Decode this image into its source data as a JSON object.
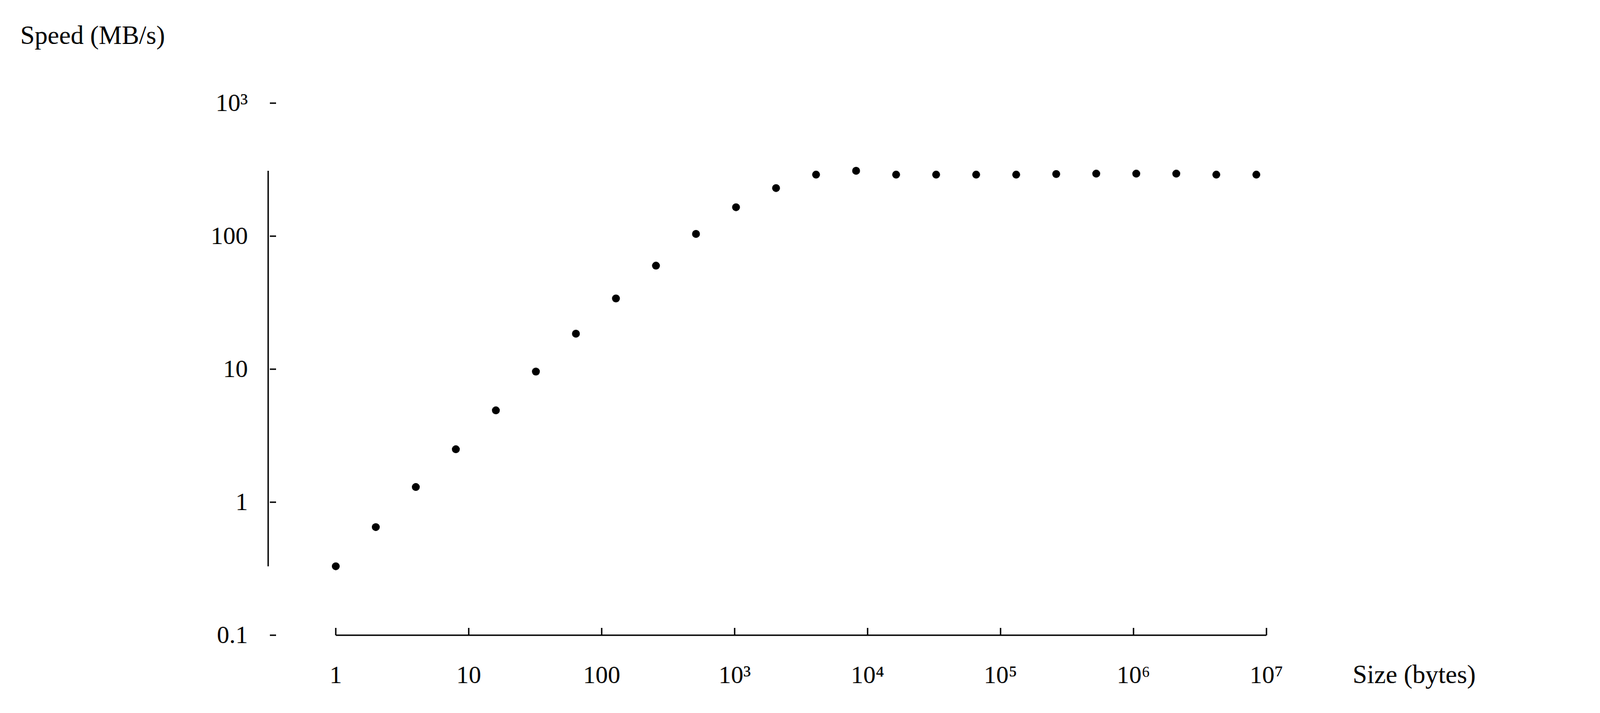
{
  "chart_data": {
    "type": "scatter",
    "x_label": "Size (bytes)",
    "y_label": "Speed (MB/s)",
    "x": [
      1,
      2,
      4,
      8,
      16,
      32,
      64,
      128,
      256,
      512,
      1024,
      2048,
      4096,
      8192,
      16384,
      32768,
      65536,
      131072,
      262144,
      524288,
      1048576,
      2097152,
      4194304,
      8388608
    ],
    "values": [
      0.33,
      0.65,
      1.3,
      2.5,
      4.9,
      9.6,
      18.5,
      34,
      60,
      104,
      165,
      230,
      290,
      310,
      290,
      290,
      290,
      290,
      293,
      295,
      295,
      295,
      290,
      290
    ],
    "xlim": [
      1,
      10000000
    ],
    "ylim": [
      0.1,
      1000
    ],
    "xticks": [
      1,
      10,
      100,
      {
        "value": 1000,
        "label": "10³"
      },
      {
        "value": 10000,
        "label": "10⁴"
      },
      {
        "value": 100000,
        "label": "10⁵"
      },
      {
        "value": 1000000,
        "label": "10⁶"
      },
      {
        "value": 10000000,
        "label": "10⁷"
      }
    ],
    "yticks": [
      0.1,
      1,
      10,
      100,
      {
        "value": 1000,
        "label": "10³"
      }
    ],
    "log": true,
    "color": "#000000",
    "marker": "circle"
  }
}
